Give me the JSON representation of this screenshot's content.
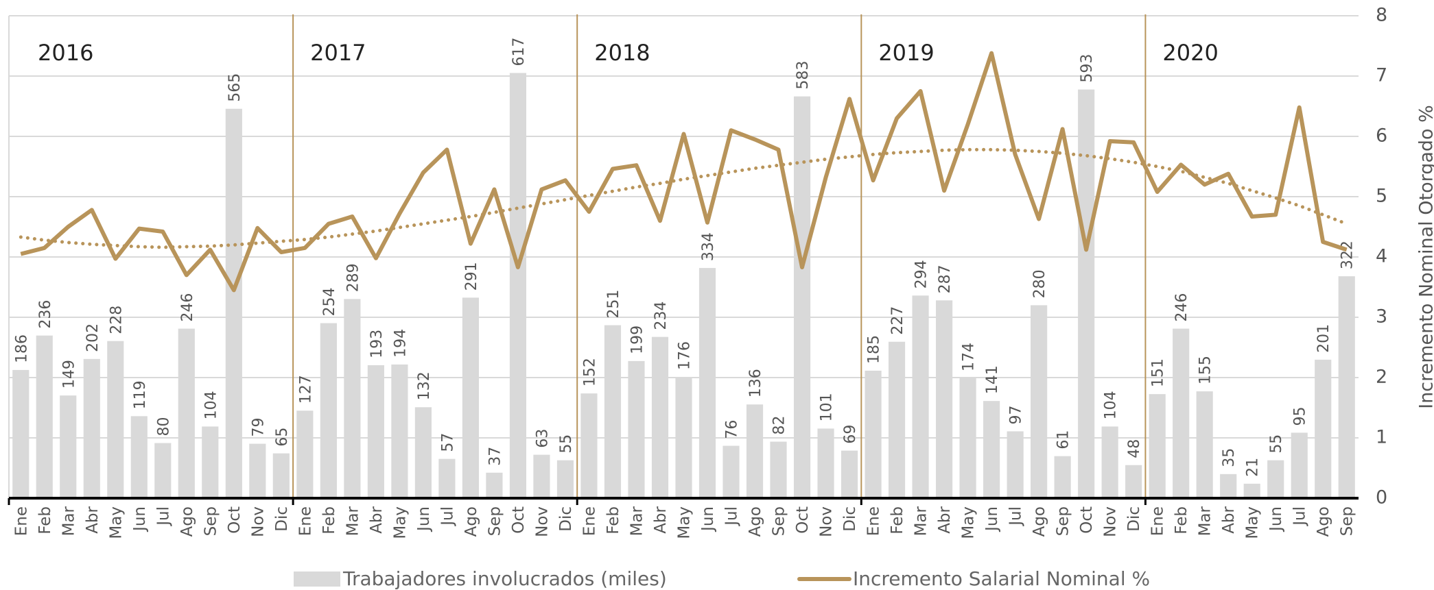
{
  "chart_data": {
    "type": "combo",
    "years": [
      "2016",
      "2017",
      "2018",
      "2019",
      "2020"
    ],
    "categories": [
      "Ene",
      "Feb",
      "Mar",
      "Abr",
      "May",
      "Jun",
      "Jul",
      "Ago",
      "Sep",
      "Oct",
      "Nov",
      "Dic",
      "Ene",
      "Feb",
      "Mar",
      "Abr",
      "May",
      "Jun",
      "Jul",
      "Ago",
      "Sep",
      "Oct",
      "Nov",
      "Dic",
      "Ene",
      "Feb",
      "Mar",
      "Abr",
      "May",
      "Jun",
      "Jul",
      "Ago",
      "Sep",
      "Oct",
      "Nov",
      "Dic",
      "Ene",
      "Feb",
      "Mar",
      "Abr",
      "May",
      "Jun",
      "Jul",
      "Ago",
      "Sep",
      "Oct",
      "Nov",
      "Dic",
      "Ene",
      "Feb",
      "Mar",
      "Abr",
      "May",
      "Jun",
      "Jul",
      "Ago",
      "Sep"
    ],
    "series": [
      {
        "name": "Trabajadores involucrados (miles)",
        "type": "bar",
        "color": "#d9d9d9",
        "values": [
          186,
          236,
          149,
          202,
          228,
          119,
          80,
          246,
          104,
          565,
          79,
          65,
          127,
          254,
          289,
          193,
          194,
          132,
          57,
          291,
          37,
          617,
          63,
          55,
          152,
          251,
          199,
          234,
          176,
          334,
          76,
          136,
          82,
          583,
          101,
          69,
          185,
          227,
          294,
          287,
          174,
          141,
          97,
          280,
          61,
          593,
          104,
          48,
          151,
          246,
          155,
          35,
          21,
          55,
          95,
          201,
          322
        ]
      },
      {
        "name": "Incremento Salarial Nominal %",
        "type": "line",
        "axis": "y2",
        "color": "#b8945a",
        "values": [
          4.05,
          4.15,
          4.5,
          4.78,
          3.97,
          4.47,
          4.42,
          3.7,
          4.12,
          3.45,
          4.48,
          4.08,
          4.15,
          4.55,
          4.67,
          3.98,
          4.72,
          5.4,
          5.78,
          4.22,
          5.12,
          3.83,
          5.12,
          5.27,
          4.75,
          5.46,
          5.52,
          4.6,
          6.04,
          4.57,
          6.1,
          5.95,
          5.78,
          3.83,
          5.32,
          6.62,
          5.27,
          6.3,
          6.75,
          5.1,
          6.2,
          7.38,
          5.7,
          4.63,
          6.12,
          4.12,
          5.92,
          5.9,
          5.08,
          5.53,
          5.2,
          5.38,
          4.67,
          4.7,
          6.48,
          4.25,
          4.12
        ]
      },
      {
        "type": "line",
        "axis": "y2",
        "style": "dotted",
        "color": "#b8945a",
        "values": [
          4.33,
          4.28,
          4.24,
          4.21,
          4.19,
          4.17,
          4.16,
          4.17,
          4.18,
          4.2,
          4.23,
          4.26,
          4.29,
          4.33,
          4.38,
          4.43,
          4.49,
          4.55,
          4.61,
          4.67,
          4.74,
          4.81,
          4.88,
          4.95,
          5.02,
          5.09,
          5.16,
          5.22,
          5.29,
          5.35,
          5.41,
          5.47,
          5.52,
          5.57,
          5.62,
          5.66,
          5.7,
          5.73,
          5.75,
          5.77,
          5.78,
          5.78,
          5.77,
          5.75,
          5.72,
          5.68,
          5.63,
          5.57,
          5.5,
          5.42,
          5.32,
          5.22,
          5.1,
          4.98,
          4.85,
          4.7,
          4.55
        ]
      }
    ],
    "ylim": [
      0,
      700
    ],
    "y2lim": [
      0,
      8
    ],
    "y2ticks": [
      0,
      1,
      2,
      3,
      4,
      5,
      6,
      7,
      8
    ],
    "y2label": "Incremento  Nominal Otorgado %",
    "grid": true,
    "legend": "bottom"
  }
}
